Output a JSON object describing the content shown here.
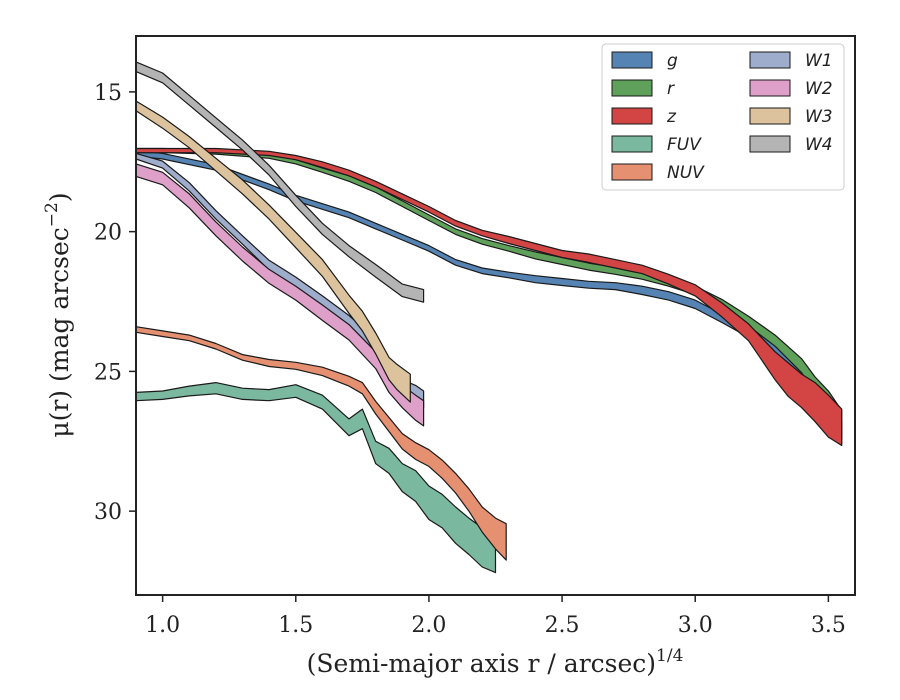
{
  "chart_data": {
    "type": "area",
    "xlabel": "(Semi-major axis r / arcsec)",
    "xlabel_sup": "1/4",
    "ylabel": "μ(r) (mag arcsec",
    "ylabel_sup": "−2",
    "ylabel_end": ")",
    "xlim": [
      0.9,
      3.6
    ],
    "ylim": [
      33.0,
      13.0
    ],
    "y_inverted": true,
    "xticks": [
      1.0,
      1.5,
      2.0,
      2.5,
      3.0,
      3.5
    ],
    "xtick_labels": [
      "1.0",
      "1.5",
      "2.0",
      "2.5",
      "3.0",
      "3.5"
    ],
    "yticks": [
      15,
      20,
      25,
      30
    ],
    "ytick_labels": [
      "15",
      "20",
      "25",
      "30"
    ],
    "grid": false,
    "legend_position": "top-right",
    "series": [
      {
        "name": "g",
        "color": "#5584b4",
        "x": [
          0.9,
          1.0,
          1.2,
          1.4,
          1.5,
          1.6,
          1.7,
          1.8,
          1.9,
          2.0,
          2.1,
          2.2,
          2.3,
          2.4,
          2.5,
          2.6,
          2.7,
          2.8,
          2.9,
          3.0,
          3.1,
          3.2,
          3.3,
          3.4,
          3.45,
          3.5,
          3.55
        ],
        "y": [
          17.2,
          17.3,
          17.7,
          18.4,
          18.8,
          19.1,
          19.4,
          19.8,
          20.2,
          20.6,
          21.1,
          21.4,
          21.55,
          21.7,
          21.8,
          21.9,
          21.95,
          22.1,
          22.3,
          22.6,
          23.1,
          23.6,
          24.2,
          25.0,
          25.8,
          26.4,
          27.2
        ],
        "width": [
          0.2,
          0.2,
          0.2,
          0.2,
          0.2,
          0.2,
          0.2,
          0.2,
          0.2,
          0.2,
          0.2,
          0.2,
          0.2,
          0.25,
          0.25,
          0.25,
          0.25,
          0.3,
          0.3,
          0.3,
          0.3,
          0.35,
          0.35,
          0.4,
          0.5,
          0.6,
          0.8
        ]
      },
      {
        "name": "r",
        "color": "#5fa05a",
        "x": [
          0.9,
          1.0,
          1.2,
          1.4,
          1.5,
          1.6,
          1.7,
          1.8,
          1.9,
          2.0,
          2.1,
          2.2,
          2.3,
          2.4,
          2.5,
          2.6,
          2.7,
          2.8,
          2.9,
          3.0,
          3.1,
          3.2,
          3.3,
          3.4,
          3.45,
          3.5,
          3.55
        ],
        "y": [
          17.1,
          17.1,
          17.15,
          17.3,
          17.5,
          17.8,
          18.1,
          18.5,
          19.0,
          19.5,
          20.0,
          20.35,
          20.6,
          20.85,
          21.05,
          21.25,
          21.4,
          21.55,
          21.8,
          22.1,
          22.6,
          23.2,
          23.9,
          24.8,
          25.5,
          26.1,
          26.9
        ],
        "width": [
          0.15,
          0.15,
          0.15,
          0.15,
          0.15,
          0.15,
          0.2,
          0.2,
          0.2,
          0.2,
          0.2,
          0.2,
          0.2,
          0.25,
          0.25,
          0.25,
          0.25,
          0.3,
          0.3,
          0.3,
          0.35,
          0.35,
          0.4,
          0.5,
          0.6,
          0.8,
          1.0
        ]
      },
      {
        "name": "z",
        "color": "#d34444",
        "x": [
          0.9,
          1.0,
          1.2,
          1.4,
          1.5,
          1.6,
          1.7,
          1.8,
          1.9,
          2.0,
          2.1,
          2.2,
          2.3,
          2.4,
          2.5,
          2.6,
          2.7,
          2.8,
          2.9,
          3.0,
          3.1,
          3.2,
          3.25,
          3.3,
          3.35,
          3.4,
          3.45,
          3.5,
          3.55
        ],
        "y": [
          17.1,
          17.1,
          17.1,
          17.2,
          17.35,
          17.6,
          17.9,
          18.3,
          18.75,
          19.2,
          19.7,
          20.05,
          20.3,
          20.55,
          20.8,
          20.95,
          21.15,
          21.35,
          21.7,
          22.1,
          22.8,
          23.6,
          24.2,
          24.8,
          25.3,
          25.7,
          26.1,
          26.6,
          27.0
        ],
        "width": [
          0.15,
          0.15,
          0.15,
          0.15,
          0.15,
          0.2,
          0.2,
          0.2,
          0.2,
          0.2,
          0.2,
          0.2,
          0.25,
          0.25,
          0.25,
          0.3,
          0.3,
          0.3,
          0.35,
          0.4,
          0.5,
          0.6,
          0.8,
          1.0,
          1.2,
          1.2,
          1.4,
          1.5,
          1.3
        ]
      },
      {
        "name": "FUV",
        "color": "#7ab8a0",
        "x": [
          0.9,
          1.0,
          1.1,
          1.2,
          1.3,
          1.4,
          1.5,
          1.6,
          1.7,
          1.75,
          1.8,
          1.85,
          1.9,
          1.95,
          2.0,
          2.05,
          2.1,
          2.15,
          2.2,
          2.25
        ],
        "y": [
          25.9,
          25.85,
          25.7,
          25.6,
          25.8,
          25.85,
          25.7,
          26.1,
          27.0,
          26.7,
          27.9,
          28.2,
          28.8,
          29.1,
          29.7,
          30.0,
          30.5,
          30.9,
          31.3,
          31.5
        ],
        "width": [
          0.3,
          0.3,
          0.35,
          0.4,
          0.4,
          0.4,
          0.45,
          0.5,
          0.6,
          0.7,
          0.8,
          0.9,
          1.0,
          1.1,
          1.2,
          1.2,
          1.3,
          1.3,
          1.4,
          1.4
        ]
      },
      {
        "name": "NUV",
        "color": "#e69072",
        "x": [
          0.9,
          1.0,
          1.1,
          1.2,
          1.3,
          1.4,
          1.5,
          1.6,
          1.7,
          1.75,
          1.8,
          1.85,
          1.9,
          1.95,
          2.0,
          2.05,
          2.1,
          2.15,
          2.2,
          2.25,
          2.29
        ],
        "y": [
          23.5,
          23.65,
          23.8,
          24.1,
          24.5,
          24.7,
          24.8,
          25.0,
          25.35,
          25.6,
          26.3,
          26.9,
          27.5,
          27.85,
          28.1,
          28.5,
          29.0,
          29.6,
          30.3,
          30.8,
          31.1
        ],
        "width": [
          0.2,
          0.2,
          0.2,
          0.2,
          0.2,
          0.25,
          0.25,
          0.3,
          0.35,
          0.4,
          0.45,
          0.5,
          0.55,
          0.6,
          0.6,
          0.65,
          0.7,
          0.8,
          0.9,
          1.1,
          1.3
        ]
      },
      {
        "name": "W1",
        "color": "#9fadcc",
        "x": [
          0.9,
          1.0,
          1.1,
          1.2,
          1.3,
          1.4,
          1.5,
          1.6,
          1.7,
          1.8,
          1.85,
          1.9,
          1.95,
          1.98
        ],
        "y": [
          17.3,
          17.6,
          18.4,
          19.4,
          20.3,
          21.2,
          21.8,
          22.5,
          23.2,
          24.1,
          25.0,
          25.6,
          25.8,
          26.0
        ],
        "width": [
          0.2,
          0.25,
          0.3,
          0.3,
          0.3,
          0.35,
          0.35,
          0.4,
          0.4,
          0.5,
          0.55,
          0.6,
          0.6,
          0.6
        ]
      },
      {
        "name": "W2",
        "color": "#dea0c8",
        "x": [
          0.9,
          1.0,
          1.1,
          1.2,
          1.3,
          1.4,
          1.5,
          1.6,
          1.7,
          1.8,
          1.85,
          1.9,
          1.95,
          1.98
        ],
        "y": [
          17.8,
          18.1,
          18.9,
          19.9,
          20.8,
          21.6,
          22.2,
          22.9,
          23.6,
          24.6,
          25.4,
          25.9,
          26.3,
          26.5
        ],
        "width": [
          0.45,
          0.45,
          0.5,
          0.5,
          0.5,
          0.5,
          0.5,
          0.55,
          0.55,
          0.6,
          0.7,
          0.8,
          0.9,
          0.9
        ]
      },
      {
        "name": "W3",
        "color": "#dcc39e",
        "x": [
          0.9,
          1.0,
          1.1,
          1.2,
          1.3,
          1.4,
          1.5,
          1.6,
          1.7,
          1.75,
          1.8,
          1.85,
          1.88,
          1.93
        ],
        "y": [
          15.5,
          16.1,
          16.8,
          17.6,
          18.4,
          19.3,
          20.3,
          21.3,
          22.6,
          23.2,
          24.0,
          24.9,
          25.2,
          25.6
        ],
        "width": [
          0.35,
          0.4,
          0.4,
          0.45,
          0.5,
          0.5,
          0.55,
          0.6,
          0.65,
          0.7,
          0.75,
          0.8,
          0.9,
          1.0
        ]
      },
      {
        "name": "W4",
        "color": "#b4b4b4",
        "x": [
          0.9,
          1.0,
          1.1,
          1.2,
          1.3,
          1.4,
          1.5,
          1.6,
          1.7,
          1.8,
          1.9,
          1.98
        ],
        "y": [
          14.1,
          14.5,
          15.3,
          16.1,
          16.9,
          17.8,
          18.9,
          19.9,
          20.7,
          21.4,
          22.1,
          22.3
        ],
        "width": [
          0.35,
          0.35,
          0.35,
          0.35,
          0.35,
          0.35,
          0.4,
          0.4,
          0.4,
          0.45,
          0.45,
          0.45
        ]
      }
    ]
  }
}
